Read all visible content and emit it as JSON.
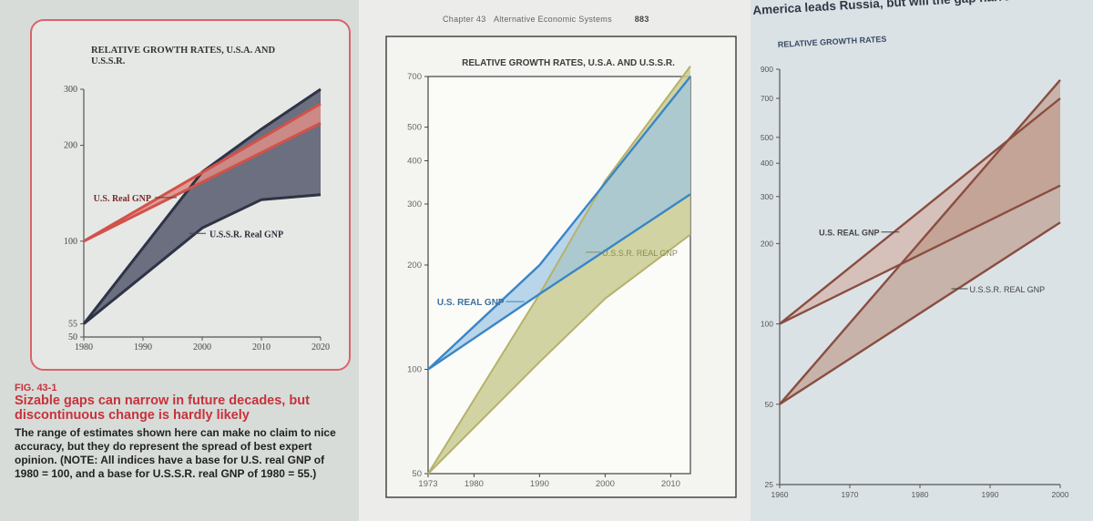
{
  "panel1": {
    "caption": {
      "fig_label": "FIG. 43-1",
      "fig_title": "Sizable gaps can narrow in future decades, but discontinuous change is hardly likely",
      "body": "The range of estimates shown here can make no claim to nice accuracy, but they do represent the spread of best expert opinion. (NOTE: All indices have a base for U.S. real GNP of 1980 = 100, and a base for U.S.S.R. real GNP of 1980 = 55.)"
    }
  },
  "panel2": {
    "header": {
      "chapter": "Chapter 43",
      "chapter_title": "Alternative Economic Systems",
      "page": "883"
    }
  },
  "panel3": {
    "title": "America leads Russia, but will the gap narrow?"
  },
  "colors": {
    "p1_us": "#d2524a",
    "p1_us_fill": "#dc8f86",
    "p1_ussr": "#2e3346",
    "p1_ussr_fill": "#5d6274",
    "p1_frame": "#d9646a",
    "p2_us": "#3a86c6",
    "p2_us_fill": "#9dc4e2",
    "p2_ussr_fill": "#c9cd93",
    "p2_ussr": "#b6b26c",
    "p2_overlap": "#bcd8d8",
    "p3_line": "#8a4d41",
    "p3_us_fill": "#d5beb5",
    "p3_ussr_fill": "#b78c79"
  },
  "chart_data": [
    {
      "type": "area",
      "title": "RELATIVE GROWTH RATES, U.S.A. AND U.S.S.R.",
      "x_ticks": [
        1980,
        1990,
        2000,
        2010,
        2020
      ],
      "y_ticks": [
        50,
        55,
        100,
        200,
        300
      ],
      "ylim": [
        50,
        300
      ],
      "xlim": [
        1980,
        2020
      ],
      "y_scale": "log",
      "series": [
        {
          "name": "U.S. Real GNP",
          "label": "U.S. Real GNP",
          "x": [
            1980,
            2020
          ],
          "low": [
            100,
            235
          ],
          "high": [
            100,
            270
          ]
        },
        {
          "name": "U.S.S.R. Real GNP",
          "label": "U.S.S.R. Real GNP",
          "x": [
            1980,
            2000,
            2010,
            2020
          ],
          "low": [
            55,
            110,
            135,
            140
          ],
          "high": [
            55,
            165,
            225,
            300
          ]
        }
      ]
    },
    {
      "type": "area",
      "title": "RELATIVE GROWTH RATES, U.S.A. AND U.S.S.R.",
      "x_ticks": [
        1973,
        1980,
        1990,
        2000,
        2010
      ],
      "y_ticks": [
        50,
        100,
        200,
        300,
        400,
        500,
        700
      ],
      "ylim": [
        50,
        700
      ],
      "xlim": [
        1973,
        2013
      ],
      "y_scale": "log",
      "series": [
        {
          "name": "U.S. REAL GNP",
          "label": "U.S. REAL GNP",
          "x": [
            1973,
            1990,
            2013
          ],
          "low": [
            100,
            165,
            320
          ],
          "high": [
            100,
            200,
            700
          ]
        },
        {
          "name": "U.S.S.R. REAL GNP",
          "label": "U.S.S.R. REAL GNP",
          "x": [
            1973,
            1990,
            2000,
            2013
          ],
          "low": [
            50,
            105,
            160,
            245
          ],
          "high": [
            50,
            165,
            350,
            750
          ]
        }
      ]
    },
    {
      "type": "area",
      "title": "RELATIVE GROWTH RATES",
      "x_ticks": [
        1960,
        1970,
        1980,
        1990,
        2000
      ],
      "y_ticks": [
        25,
        50,
        100,
        200,
        300,
        400,
        500,
        700,
        900
      ],
      "ylim": [
        25,
        900
      ],
      "xlim": [
        1960,
        2000
      ],
      "y_scale": "log",
      "series": [
        {
          "name": "U.S. REAL GNP",
          "label": "U.S. REAL GNP",
          "x": [
            1960,
            2000
          ],
          "low": [
            100,
            330
          ],
          "high": [
            100,
            700
          ]
        },
        {
          "name": "U.S.S.R. REAL GNP",
          "label": "U.S.S.R. REAL GNP",
          "x": [
            1960,
            2000
          ],
          "low": [
            50,
            240
          ],
          "high": [
            50,
            820
          ]
        }
      ]
    }
  ]
}
